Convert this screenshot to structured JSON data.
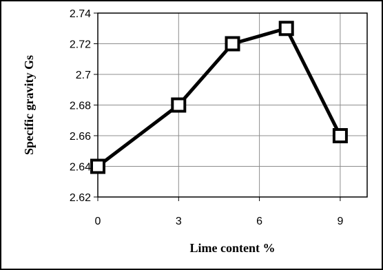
{
  "chart_data": {
    "type": "line",
    "title": "",
    "xlabel": "Lime content %",
    "ylabel": "Specific gravity Gs",
    "x": [
      0,
      3,
      5,
      7,
      9
    ],
    "series": [
      {
        "values": [
          2.64,
          2.68,
          2.72,
          2.73,
          2.66
        ]
      }
    ],
    "xlim": [
      0,
      10
    ],
    "ylim": [
      2.62,
      2.74
    ],
    "xticks": [
      0,
      3,
      6,
      9
    ],
    "xtick_labels": [
      "0",
      "3",
      "6",
      "9"
    ],
    "yticks": [
      2.62,
      2.64,
      2.66,
      2.68,
      2.7,
      2.72,
      2.74
    ],
    "ytick_labels": [
      "2.62",
      "2.64",
      "2.66",
      "2.68",
      "2.7",
      "2.72",
      "2.74"
    ],
    "grid": true,
    "legend": "none",
    "marker": "hollow-square",
    "line_color": "#000000",
    "grid_color": "#8c8c8c"
  }
}
